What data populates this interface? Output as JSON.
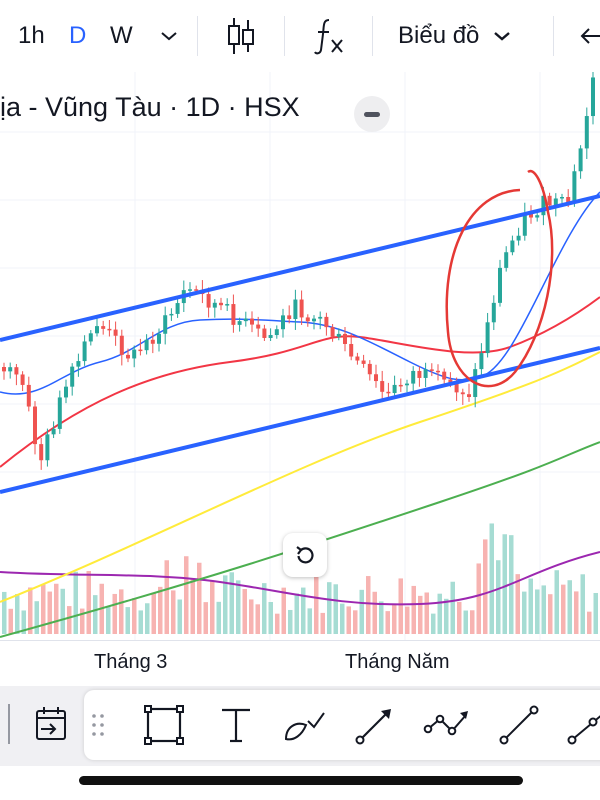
{
  "toolbar_top": {
    "intervals": [
      "1h",
      "D",
      "W"
    ],
    "active_interval": "D",
    "chart_type_label": "Biểu đồ"
  },
  "chart": {
    "title": "ịa - Vũng Tàu · 1D · HSX",
    "time_labels": [
      "Tháng 3",
      "Tháng Năm"
    ]
  },
  "colors": {
    "up": "#26a69a",
    "down": "#ef5350",
    "channel": "#2962ff",
    "ma_blue": "#2962ff",
    "ma_red": "#f23645",
    "ma_yellow": "#ffeb3b",
    "ma_green": "#4caf50",
    "volume_ma": "#9c27b0",
    "annotation": "#e53935"
  },
  "drawing_tools": [
    "calendar-range-icon",
    "rectangle-icon",
    "text-icon",
    "brush-icon",
    "arrow-icon",
    "path-icon",
    "trend-line-icon",
    "ray-icon"
  ]
}
